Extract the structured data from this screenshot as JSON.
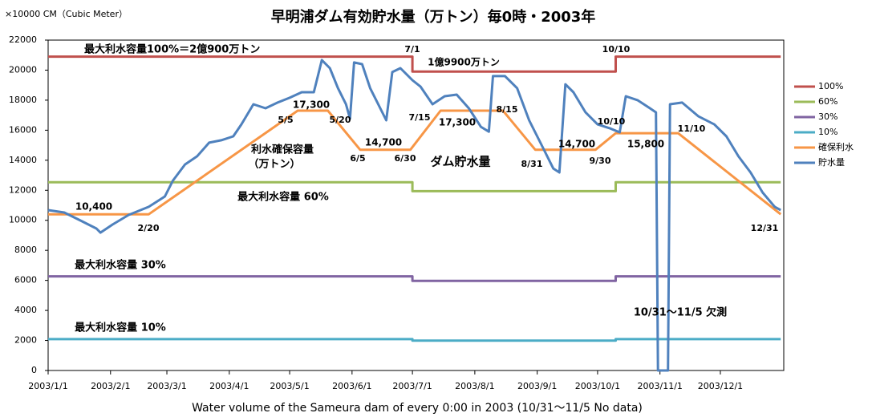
{
  "chart_data": {
    "type": "line",
    "title": "早明浦ダム有効貯水量（万トン）毎0時・2003年",
    "y_unit_label": "×10000 CM（Cubic Meter）",
    "caption": "Water volume of the Sameura dam of every 0:00 in 2003 (10/31～11/5 No data)",
    "xlim": [
      "2003/1/1",
      "2003/12/31"
    ],
    "xticks": [
      "2003/1/1",
      "2003/2/1",
      "2003/3/1",
      "2003/4/1",
      "2003/5/1",
      "2003/6/1",
      "2003/7/1",
      "2003/8/1",
      "2003/9/1",
      "2003/10/1",
      "2003/11/1",
      "2003/12/1"
    ],
    "ylim": [
      0,
      22000
    ],
    "yticks": [
      0,
      2000,
      4000,
      6000,
      8000,
      10000,
      12000,
      14000,
      16000,
      18000,
      20000,
      22000
    ],
    "grid": false,
    "legend": "right",
    "series": [
      {
        "name": "100%",
        "color": "#c0504d",
        "x": [
          "2003/1/1",
          "2003/7/1",
          "2003/7/1",
          "2003/10/10",
          "2003/10/10",
          "2003/12/31"
        ],
        "values": [
          20900,
          20900,
          19900,
          19900,
          20900,
          20900
        ]
      },
      {
        "name": "60%",
        "color": "#9bbb59",
        "x": [
          "2003/1/1",
          "2003/7/1",
          "2003/7/1",
          "2003/10/10",
          "2003/10/10",
          "2003/12/31"
        ],
        "values": [
          12540,
          12540,
          11940,
          11940,
          12540,
          12540
        ]
      },
      {
        "name": "30%",
        "color": "#8064a2",
        "x": [
          "2003/1/1",
          "2003/7/1",
          "2003/7/1",
          "2003/10/10",
          "2003/10/10",
          "2003/12/31"
        ],
        "values": [
          6270,
          6270,
          5970,
          5970,
          6270,
          6270
        ]
      },
      {
        "name": "10%",
        "color": "#4bacc6",
        "x": [
          "2003/1/1",
          "2003/7/1",
          "2003/7/1",
          "2003/10/10",
          "2003/10/10",
          "2003/12/31"
        ],
        "values": [
          2090,
          2090,
          1990,
          1990,
          2090,
          2090
        ]
      },
      {
        "name": "確保利水",
        "color": "#f79646",
        "x": [
          "2003/1/1",
          "2003/2/20",
          "2003/5/5",
          "2003/5/20",
          "2003/6/5",
          "2003/6/30",
          "2003/7/15",
          "2003/8/15",
          "2003/8/31",
          "2003/9/30",
          "2003/10/10",
          "2003/11/10",
          "2003/12/31"
        ],
        "values": [
          10400,
          10400,
          17300,
          17300,
          14700,
          14700,
          17300,
          17300,
          14700,
          14700,
          15800,
          15800,
          10400
        ]
      },
      {
        "name": "貯水量",
        "color": "#4f81bd",
        "x": [
          "2003/1/1",
          "2003/1/9",
          "2003/1/17",
          "2003/1/25",
          "2003/1/27",
          "2003/2/2",
          "2003/2/10",
          "2003/2/20",
          "2003/2/28",
          "2003/3/4",
          "2003/3/10",
          "2003/3/16",
          "2003/3/22",
          "2003/3/28",
          "2003/4/3",
          "2003/4/7",
          "2003/4/13",
          "2003/4/19",
          "2003/4/25",
          "2003/5/1",
          "2003/5/7",
          "2003/5/13",
          "2003/5/17",
          "2003/5/21",
          "2003/5/25",
          "2003/5/29",
          "2003/5/31",
          "2003/6/2",
          "2003/6/6",
          "2003/6/10",
          "2003/6/14",
          "2003/6/18",
          "2003/6/21",
          "2003/6/25",
          "2003/7/1",
          "2003/7/5",
          "2003/7/11",
          "2003/7/17",
          "2003/7/23",
          "2003/7/29",
          "2003/8/4",
          "2003/8/8",
          "2003/8/10",
          "2003/8/16",
          "2003/8/22",
          "2003/8/28",
          "2003/9/3",
          "2003/9/9",
          "2003/9/12",
          "2003/9/15",
          "2003/9/19",
          "2003/9/25",
          "2003/10/1",
          "2003/10/7",
          "2003/10/12",
          "2003/10/15",
          "2003/10/21",
          "2003/10/27",
          "2003/10/30",
          "2003/10/31",
          "2003/11/5",
          "2003/11/6",
          "2003/11/12",
          "2003/11/20",
          "2003/11/28",
          "2003/12/4",
          "2003/12/10",
          "2003/12/16",
          "2003/12/22",
          "2003/12/28",
          "2003/12/31"
        ],
        "values": [
          10680,
          10520,
          9990,
          9450,
          9180,
          9720,
          10360,
          10900,
          11590,
          12650,
          13720,
          14260,
          15170,
          15330,
          15590,
          16390,
          17730,
          17460,
          17840,
          18160,
          18530,
          18530,
          20670,
          20130,
          18800,
          17730,
          16770,
          20510,
          20400,
          18800,
          17730,
          16660,
          19870,
          20130,
          19330,
          18910,
          17730,
          18260,
          18370,
          17460,
          16230,
          15900,
          19600,
          19600,
          18800,
          16660,
          15060,
          13450,
          13190,
          19060,
          18530,
          17190,
          16390,
          16130,
          15860,
          18260,
          17990,
          17460,
          17190,
          0,
          0,
          17730,
          17840,
          16930,
          16390,
          15590,
          14260,
          13190,
          11850,
          10900,
          10680
        ]
      }
    ],
    "annotations": [
      "最大利水容量100%＝2億900万トン",
      "1億9900万トン",
      "7/1",
      "10/10",
      "17,300",
      "5/5",
      "5/20",
      "6/5",
      "6/30",
      "14,700",
      "7/15",
      "17,300",
      "8/15",
      "8/31",
      "14,700",
      "9/30",
      "10/10",
      "15,800",
      "11/10",
      "10,400",
      "2/20",
      "12/31",
      "利水確保容量",
      "（万トン）",
      "ダム貯水量",
      "最大利水容量 60%",
      "最大利水容量 30%",
      "最大利水容量 10%",
      "10/31～11/5 欠測"
    ]
  }
}
